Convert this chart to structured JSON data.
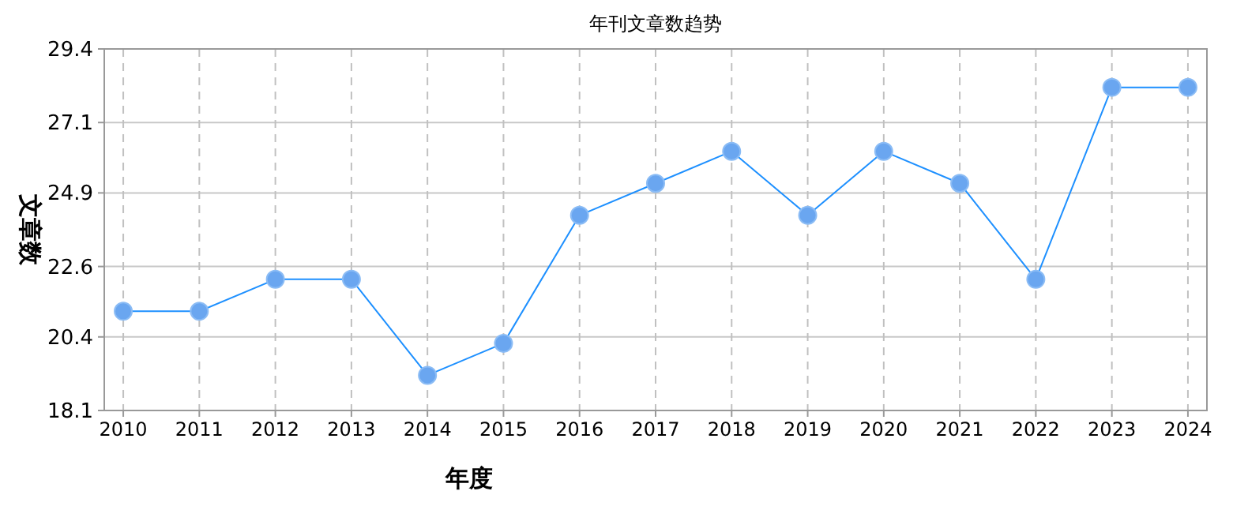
{
  "chart_data": {
    "type": "line",
    "title": "年刊文章数趋势",
    "xlabel": "年度",
    "ylabel": "文章数",
    "categories": [
      "2010",
      "2011",
      "2012",
      "2013",
      "2014",
      "2015",
      "2016",
      "2017",
      "2018",
      "2019",
      "2020",
      "2021",
      "2022",
      "2023",
      "2024"
    ],
    "series": [
      {
        "color": "#1e90ff",
        "values": [
          21.2,
          21.2,
          22.2,
          22.2,
          19.2,
          20.2,
          24.2,
          25.2,
          26.2,
          24.2,
          26.2,
          25.2,
          22.2,
          28.2,
          28.2
        ]
      }
    ],
    "ylim": [
      18.1,
      29.4
    ],
    "yticks": [
      18.1,
      20.4,
      22.6,
      24.9,
      27.1,
      29.4
    ],
    "grid": true,
    "marker": "circle"
  }
}
